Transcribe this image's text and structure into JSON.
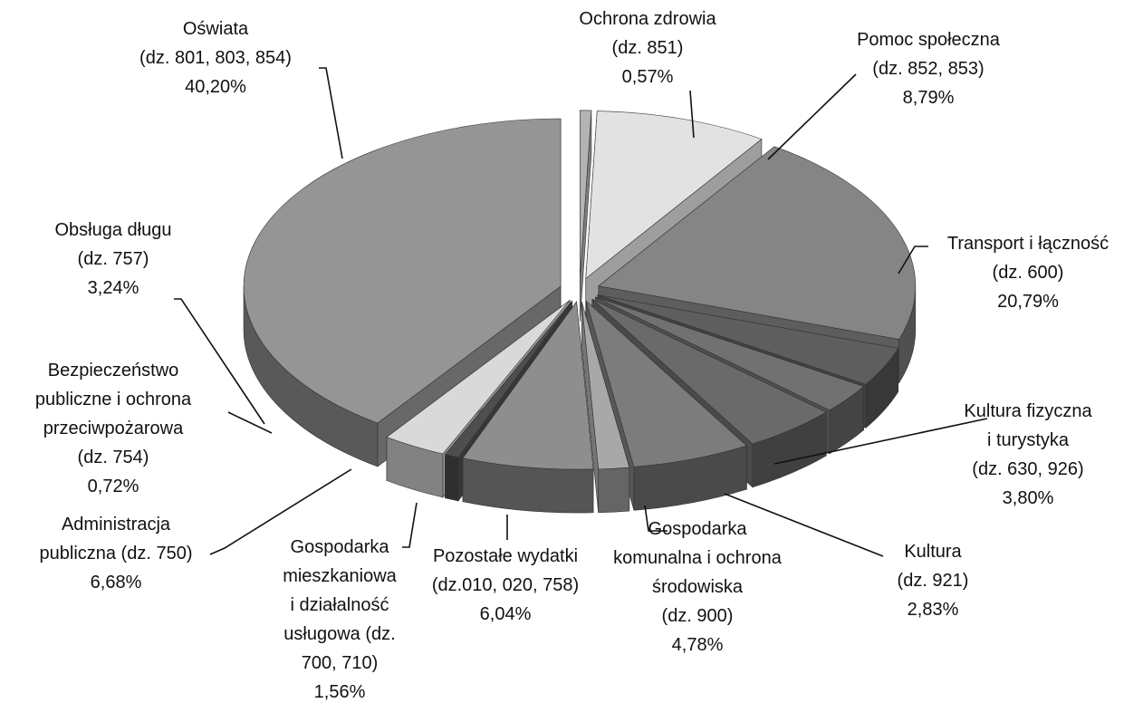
{
  "chart_data": {
    "type": "pie3d",
    "categories": [
      [
        "Ochrona zdrowia",
        "(dz. 851)"
      ],
      [
        "Pomoc społeczna",
        "(dz. 852, 853)"
      ],
      [
        "Transport i łączność",
        "(dz. 600)"
      ],
      [
        "Kultura fizyczna",
        "i turystyka",
        "(dz. 630, 926)"
      ],
      [
        "Kultura",
        "(dz. 921)"
      ],
      [
        "Gospodarka",
        "komunalna i ochrona",
        "środowiska",
        "(dz. 900)"
      ],
      [
        "Pozostałe wydatki",
        "(dz.010, 020, 758)"
      ],
      [
        "Gospodarka",
        "mieszkaniowa",
        "i działalność",
        "usługowa (dz.",
        "700, 710)"
      ],
      [
        "Administracja",
        "publiczna  (dz. 750)"
      ],
      [
        "Bezpieczeństwo",
        "publiczne i ochrona",
        "przeciwpożarowa",
        "(dz. 754)"
      ],
      [
        "Obsługa długu",
        "(dz. 757)"
      ],
      [
        "Oświata",
        "(dz. 801, 803, 854)"
      ]
    ],
    "values": [
      0.57,
      8.79,
      20.79,
      3.8,
      2.83,
      4.78,
      6.04,
      1.56,
      6.68,
      0.72,
      3.24,
      40.2
    ],
    "value_labels": [
      "0,57%",
      "8,79%",
      "20,79%",
      "3,80%",
      "2,83%",
      "4,78%",
      "6,04%",
      "1,56%",
      "6,68%",
      "0,72%",
      "3,24%",
      "40,20%"
    ],
    "colors": [
      "#b4b4b4",
      "#e2e2e2",
      "#858585",
      "#5e5e5e",
      "#717171",
      "#6a6a6a",
      "#7c7c7c",
      "#a8a8a8",
      "#8e8e8e",
      "#4e4e4e",
      "#d9d9d9",
      "#959595"
    ]
  }
}
